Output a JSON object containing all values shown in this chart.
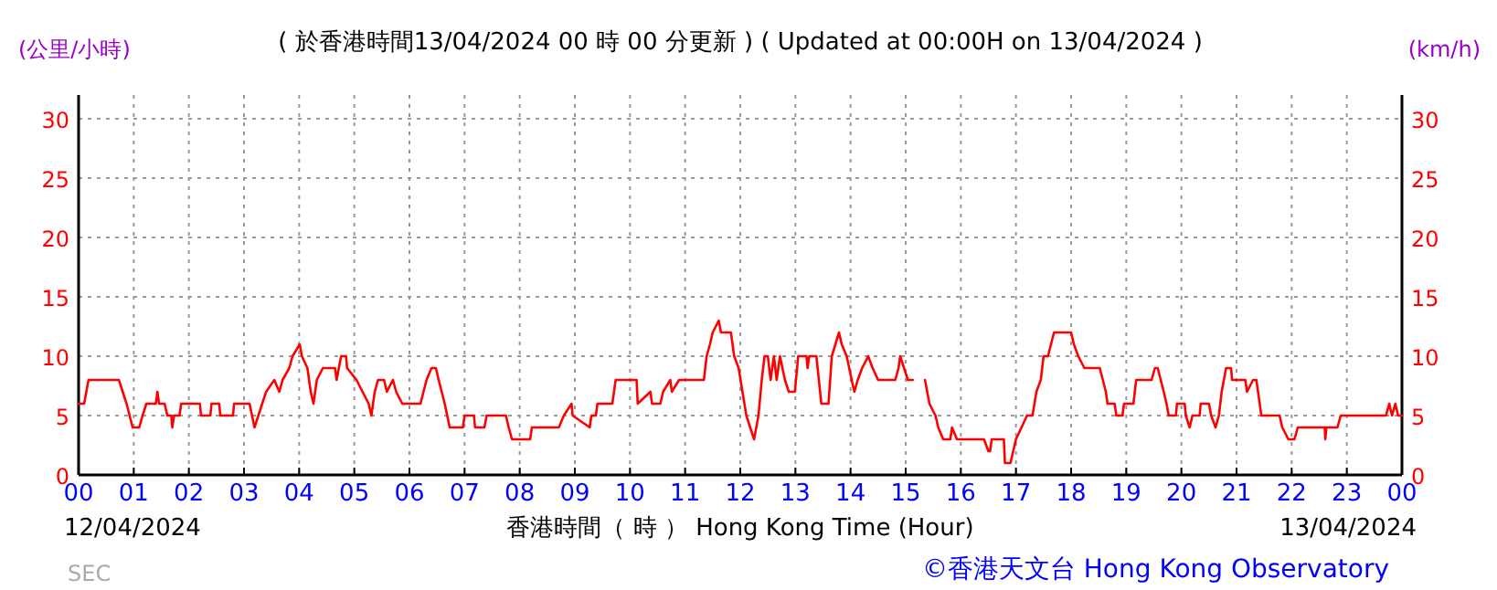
{
  "chart_data": {
    "type": "line",
    "title": "( 於香港時間13/04/2024 00 時 00 分更新 ) ( Updated at 00:00H on 13/04/2024 )",
    "xlabel": "香港時間（ 時 ） Hong Kong Time (Hour)",
    "ylabel": "(公里/小時)",
    "y2label": "(km/h)",
    "annotations": [
      "12/04/2024",
      "13/04/2024",
      "SEC",
      "©香港天文台 Hong Kong Observatory"
    ],
    "series": [
      {
        "color": "#ff0000",
        "x": [
          0.0,
          0.1,
          0.18,
          0.73,
          0.8,
          0.87,
          0.98,
          1.1,
          1.16,
          1.23,
          1.4,
          1.43,
          1.46,
          1.56,
          1.61,
          1.68,
          1.7,
          1.73,
          1.83,
          1.86,
          2.2,
          2.22,
          2.39,
          2.41,
          2.55,
          2.57,
          2.8,
          2.82,
          3.1,
          3.19,
          3.26,
          3.33,
          3.4,
          3.55,
          3.64,
          3.7,
          3.82,
          3.88,
          4.01,
          4.05,
          4.15,
          4.21,
          4.26,
          4.32,
          4.43,
          4.65,
          4.68,
          4.76,
          4.85,
          4.87,
          5.04,
          5.15,
          5.26,
          5.31,
          5.37,
          5.43,
          5.54,
          5.59,
          5.7,
          5.76,
          5.87,
          6.2,
          6.31,
          6.4,
          6.48,
          6.53,
          6.64,
          6.73,
          6.97,
          7.0,
          7.17,
          7.19,
          7.36,
          7.4,
          7.75,
          7.8,
          7.86,
          8.19,
          8.22,
          8.71,
          8.8,
          8.94,
          8.96,
          9.27,
          9.3,
          9.38,
          9.41,
          9.68,
          9.74,
          10.12,
          10.14,
          10.37,
          10.4,
          10.55,
          10.6,
          10.73,
          10.76,
          10.89,
          11.34,
          11.39,
          11.45,
          11.5,
          11.61,
          11.65,
          11.83,
          11.89,
          11.97,
          12.11,
          12.25,
          12.33,
          12.39,
          12.44,
          12.5,
          12.55,
          12.61,
          12.66,
          12.72,
          12.81,
          12.88,
          12.99,
          13.05,
          13.2,
          13.22,
          13.25,
          13.38,
          13.47,
          13.6,
          13.66,
          13.79,
          13.84,
          13.93,
          14.02,
          14.07,
          14.13,
          14.21,
          14.32,
          14.4,
          14.5,
          14.81,
          14.87,
          14.9,
          15.04,
          15.13
        ],
        "values": [
          6,
          6,
          8,
          8,
          7,
          6,
          4,
          4,
          5,
          6,
          6,
          7,
          6,
          6,
          5,
          5,
          4,
          5,
          5,
          6,
          6,
          5,
          5,
          6,
          6,
          5,
          5,
          6,
          6,
          4,
          5,
          6,
          7,
          8,
          7,
          8,
          9,
          10,
          11,
          10,
          9,
          7,
          6,
          8,
          9,
          9,
          8,
          10,
          10,
          9,
          8,
          7,
          6,
          5,
          7,
          8,
          8,
          7,
          8,
          7,
          6,
          6,
          8,
          9,
          9,
          8,
          6,
          4,
          4,
          5,
          5,
          4,
          4,
          5,
          5,
          4,
          3,
          3,
          4,
          4,
          5,
          6,
          5,
          4,
          5,
          5,
          6,
          6,
          8,
          8,
          6,
          7,
          6,
          6,
          7,
          8,
          7,
          8,
          8,
          10,
          11,
          12,
          13,
          12,
          12,
          10,
          9,
          5,
          3,
          5,
          8,
          10,
          10,
          8,
          10,
          8,
          10,
          8,
          7,
          7,
          10,
          10,
          9,
          10,
          10,
          6,
          6,
          10,
          12,
          11,
          10,
          8,
          7,
          8,
          9,
          10,
          9,
          8,
          8,
          9,
          10,
          8,
          8
        ]
      },
      {
        "color": "#ff0000",
        "x": [
          15.35,
          15.43,
          15.54,
          15.59,
          15.68,
          15.81,
          15.84,
          15.93,
          16.42,
          16.5,
          16.53,
          16.56,
          16.78,
          16.8,
          16.9,
          16.95,
          17.0,
          17.1,
          17.2,
          17.3,
          17.37,
          17.45,
          17.5,
          17.58,
          17.69,
          18.0,
          18.05,
          18.13,
          18.24,
          18.52,
          18.63,
          18.66,
          18.79,
          18.82,
          18.93,
          18.96,
          19.13,
          19.18,
          19.46,
          19.52,
          19.57,
          19.68,
          19.73,
          19.77,
          19.9,
          19.92,
          20.06,
          20.08,
          20.15,
          20.2,
          20.33,
          20.35,
          20.5,
          20.54,
          20.62,
          20.68,
          20.73,
          20.81,
          20.9,
          20.92,
          21.16,
          21.19,
          21.3,
          21.36,
          21.39,
          21.45,
          21.78,
          21.83,
          21.94,
          22.05,
          22.11,
          22.6,
          22.61,
          22.63,
          22.83,
          22.89,
          23.71,
          23.77,
          23.82,
          23.88,
          23.93,
          24
        ],
        "values": [
          8,
          6,
          5,
          4,
          3,
          3,
          4,
          3,
          3,
          2,
          2,
          3,
          3,
          1,
          1,
          2,
          3,
          4,
          5,
          5,
          7,
          8,
          10,
          10,
          12,
          12,
          11,
          10,
          9,
          9,
          7,
          6,
          6,
          5,
          5,
          6,
          6,
          8,
          8,
          9,
          9,
          7,
          6,
          5,
          5,
          6,
          6,
          5,
          4,
          5,
          5,
          6,
          6,
          5,
          4,
          5,
          7,
          9,
          9,
          8,
          8,
          7,
          8,
          8,
          7,
          5,
          5,
          4,
          3,
          3,
          4,
          4,
          3,
          4,
          4,
          5,
          5,
          6,
          5,
          6,
          5,
          5
        ]
      }
    ],
    "xlim": [
      0,
      24
    ],
    "xticks": [
      {
        "value": 0,
        "label": "00"
      },
      {
        "value": 1,
        "label": "01"
      },
      {
        "value": 2,
        "label": "02"
      },
      {
        "value": 3,
        "label": "03"
      },
      {
        "value": 4,
        "label": "04"
      },
      {
        "value": 5,
        "label": "05"
      },
      {
        "value": 6,
        "label": "06"
      },
      {
        "value": 7,
        "label": "07"
      },
      {
        "value": 8,
        "label": "08"
      },
      {
        "value": 9,
        "label": "09"
      },
      {
        "value": 10,
        "label": "10"
      },
      {
        "value": 11,
        "label": "11"
      },
      {
        "value": 12,
        "label": "12"
      },
      {
        "value": 13,
        "label": "13"
      },
      {
        "value": 14,
        "label": "14"
      },
      {
        "value": 15,
        "label": "15"
      },
      {
        "value": 16,
        "label": "16"
      },
      {
        "value": 17,
        "label": "17"
      },
      {
        "value": 18,
        "label": "18"
      },
      {
        "value": 19,
        "label": "19"
      },
      {
        "value": 20,
        "label": "20"
      },
      {
        "value": 21,
        "label": "21"
      },
      {
        "value": 22,
        "label": "22"
      },
      {
        "value": 23,
        "label": "23"
      },
      {
        "value": 24,
        "label": "00"
      }
    ],
    "ylim": [
      0,
      32
    ],
    "yticks": [
      0,
      5,
      10,
      15,
      20,
      25,
      30
    ],
    "y2lim": [
      0,
      32
    ],
    "y2ticks": [
      0,
      5,
      10,
      15,
      20,
      25,
      30
    ],
    "grid": true
  }
}
